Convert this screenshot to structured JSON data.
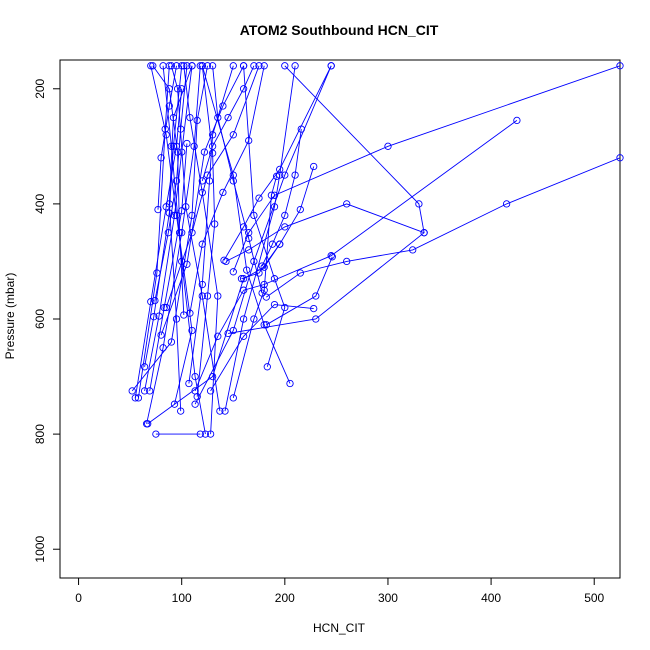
{
  "chart_data": {
    "type": "line",
    "title": "ATOM2 Southbound HCN_CIT",
    "xlabel": "HCN_CIT",
    "ylabel": "Pressure (mbar)",
    "xlim": [
      -18,
      525
    ],
    "ylim": [
      1050,
      150
    ],
    "y_reversed": true,
    "x_ticks": [
      0,
      100,
      200,
      300,
      400,
      500
    ],
    "y_ticks": [
      200,
      400,
      600,
      800,
      1000
    ],
    "grid": false,
    "legend": "none",
    "colors": {
      "series": "#0000ff",
      "axis": "#000000"
    },
    "markers": "open-circle",
    "series": [
      {
        "points": [
          [
            75,
            800
          ],
          [
            118,
            800
          ]
        ]
      },
      {
        "points": [
          [
            123,
            800
          ],
          [
            113,
            700
          ],
          [
            100,
            500
          ],
          [
            90,
            300
          ],
          [
            82,
            160
          ]
        ]
      },
      {
        "points": [
          [
            128,
            800
          ],
          [
            135,
            560
          ],
          [
            120,
            380
          ],
          [
            108,
            250
          ],
          [
            102,
            160
          ]
        ]
      },
      {
        "points": [
          [
            66,
            782
          ],
          [
            82,
            650
          ],
          [
            100,
            450
          ],
          [
            112,
            300
          ],
          [
            118,
            160
          ]
        ]
      },
      {
        "points": [
          [
            67,
            782
          ],
          [
            130,
            700
          ],
          [
            160,
            530
          ],
          [
            180,
            510
          ],
          [
            195,
            470
          ]
        ]
      },
      {
        "points": [
          [
            93,
            748
          ],
          [
            110,
            620
          ],
          [
            95,
            420
          ],
          [
            85,
            280
          ],
          [
            70,
            160
          ]
        ]
      },
      {
        "points": [
          [
            99,
            760
          ],
          [
            95,
            600
          ],
          [
            88,
            400
          ],
          [
            92,
            250
          ],
          [
            110,
            160
          ]
        ]
      },
      {
        "points": [
          [
            113,
            748
          ],
          [
            150,
            620
          ],
          [
            170,
            500
          ],
          [
            200,
            350
          ],
          [
            245,
            160
          ]
        ]
      },
      {
        "points": [
          [
            137,
            760
          ],
          [
            120,
            560
          ],
          [
            104,
            405
          ],
          [
            96,
            200
          ],
          [
            90,
            160
          ]
        ]
      },
      {
        "points": [
          [
            142,
            760
          ],
          [
            160,
            600
          ],
          [
            190,
            405
          ],
          [
            195,
            350
          ],
          [
            210,
            160
          ]
        ]
      },
      {
        "points": [
          [
            150,
            737
          ],
          [
            170,
            600
          ],
          [
            180,
            550
          ],
          [
            187,
            385
          ],
          [
            192,
            352
          ]
        ]
      },
      {
        "points": [
          [
            115,
            735
          ],
          [
            125,
            560
          ],
          [
            132,
            435
          ],
          [
            130,
            312
          ],
          [
            120,
            160
          ]
        ]
      },
      {
        "points": [
          [
            55,
            737
          ],
          [
            70,
            570
          ],
          [
            85,
            405
          ],
          [
            95,
            300
          ],
          [
            100,
            200
          ]
        ]
      },
      {
        "points": [
          [
            58,
            737
          ],
          [
            76,
            520
          ],
          [
            84,
            270
          ],
          [
            88,
            160
          ]
        ]
      },
      {
        "points": [
          [
            52,
            725
          ],
          [
            90,
            640
          ],
          [
            110,
            420
          ],
          [
            115,
            255
          ],
          [
            125,
            160
          ]
        ]
      },
      {
        "points": [
          [
            64,
            725
          ],
          [
            78,
            595
          ],
          [
            93,
            420
          ],
          [
            100,
            310
          ],
          [
            110,
            160
          ]
        ]
      },
      {
        "points": [
          [
            69,
            725
          ],
          [
            83,
            580
          ],
          [
            100,
            412
          ],
          [
            105,
            295
          ]
        ]
      },
      {
        "points": [
          [
            113,
            725
          ],
          [
            135,
            630
          ],
          [
            160,
            550
          ],
          [
            180,
            540
          ],
          [
            245,
            490
          ],
          [
            425,
            255
          ]
        ]
      },
      {
        "points": [
          [
            128,
            725
          ],
          [
            160,
            630
          ],
          [
            190,
            575
          ],
          [
            228,
            582
          ]
        ]
      },
      {
        "points": [
          [
            205,
            712
          ],
          [
            180,
            610
          ],
          [
            163,
            515
          ],
          [
            150,
            350
          ],
          [
            120,
            160
          ]
        ]
      },
      {
        "points": [
          [
            107,
            712
          ],
          [
            120,
            540
          ],
          [
            127,
            360
          ],
          [
            130,
            280
          ],
          [
            150,
            160
          ]
        ]
      },
      {
        "points": [
          [
            183,
            683
          ],
          [
            200,
            580
          ],
          [
            190,
            530
          ],
          [
            170,
            420
          ],
          [
            160,
            160
          ]
        ]
      },
      {
        "points": [
          [
            64,
            683
          ],
          [
            73,
            596
          ],
          [
            88,
            416
          ],
          [
            92,
            300
          ],
          [
            100,
            160
          ]
        ]
      },
      {
        "points": [
          [
            80,
            628
          ],
          [
            105,
            505
          ],
          [
            122,
            310
          ],
          [
            140,
            230
          ],
          [
            160,
            160
          ]
        ]
      },
      {
        "points": [
          [
            145,
            625
          ],
          [
            230,
            600
          ],
          [
            335,
            450
          ],
          [
            330,
            400
          ],
          [
            200,
            160
          ]
        ]
      },
      {
        "points": [
          [
            182,
            610
          ],
          [
            230,
            560
          ],
          [
            246,
            492
          ]
        ]
      },
      {
        "points": [
          [
            108,
            590
          ],
          [
            120,
            470
          ],
          [
            140,
            380
          ],
          [
            165,
            290
          ],
          [
            180,
            160
          ]
        ]
      },
      {
        "points": [
          [
            102,
            593
          ],
          [
            98,
            450
          ],
          [
            96,
            310
          ],
          [
            88,
            200
          ],
          [
            72,
            160
          ]
        ]
      },
      {
        "points": [
          [
            85,
            580
          ],
          [
            110,
            450
          ],
          [
            125,
            350
          ],
          [
            150,
            280
          ],
          [
            175,
            160
          ]
        ]
      },
      {
        "points": [
          [
            74,
            568
          ],
          [
            87,
            450
          ],
          [
            95,
            360
          ],
          [
            99,
            270
          ],
          [
            105,
            160
          ]
        ]
      },
      {
        "points": [
          [
            178,
            555
          ],
          [
            165,
            460
          ],
          [
            150,
            360
          ],
          [
            135,
            250
          ],
          [
            130,
            160
          ]
        ]
      },
      {
        "points": [
          [
            182,
            562
          ],
          [
            215,
            520
          ],
          [
            260,
            500
          ],
          [
            324,
            480
          ],
          [
            415,
            400
          ],
          [
            525,
            320
          ]
        ]
      },
      {
        "points": [
          [
            158,
            530
          ],
          [
            175,
            520
          ],
          [
            195,
            470
          ],
          [
            215,
            410
          ],
          [
            228,
            335
          ]
        ]
      },
      {
        "points": [
          [
            178,
            508
          ],
          [
            188,
            470
          ],
          [
            200,
            420
          ],
          [
            210,
            350
          ],
          [
            216,
            270
          ]
        ]
      },
      {
        "points": [
          [
            141,
            498
          ],
          [
            160,
            440
          ],
          [
            175,
            390
          ],
          [
            195,
            340
          ],
          [
            245,
            160
          ]
        ]
      },
      {
        "points": [
          [
            150,
            518
          ],
          [
            165,
            450
          ],
          [
            190,
            385
          ],
          [
            300,
            300
          ],
          [
            525,
            160
          ]
        ]
      },
      {
        "points": [
          [
            143,
            500
          ],
          [
            165,
            480
          ],
          [
            200,
            440
          ],
          [
            260,
            400
          ],
          [
            335,
            450
          ]
        ]
      },
      {
        "points": [
          [
            77,
            410
          ],
          [
            80,
            320
          ],
          [
            88,
            230
          ],
          [
            95,
            160
          ]
        ]
      },
      {
        "points": [
          [
            120,
            360
          ],
          [
            130,
            300
          ],
          [
            145,
            250
          ],
          [
            160,
            200
          ],
          [
            170,
            160
          ]
        ]
      }
    ]
  }
}
